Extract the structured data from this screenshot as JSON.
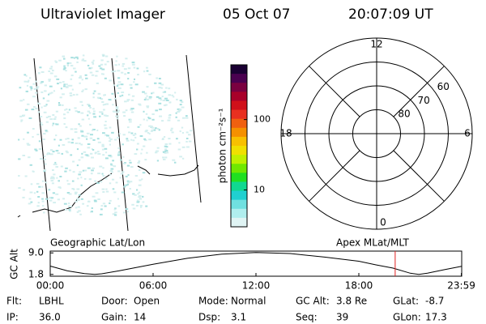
{
  "header": {
    "instrument": "Ultraviolet Imager",
    "date": "05 Oct 07",
    "time": "20:07:09 UT"
  },
  "colorbar": {
    "label": "photon cm⁻²s⁻¹",
    "scale": "log",
    "lim": [
      3,
      600
    ],
    "ticks": [
      10,
      100
    ],
    "colors": [
      "#1a0033",
      "#4a0050",
      "#7a0040",
      "#a8002a",
      "#d0101a",
      "#e83020",
      "#f06010",
      "#f59000",
      "#f8c000",
      "#f0e000",
      "#c0f000",
      "#70e800",
      "#20e020",
      "#10d890",
      "#20d0d0",
      "#70e0e0",
      "#b0eeee",
      "#e0f4f4"
    ]
  },
  "polar": {
    "lat_lim": [
      90,
      50
    ],
    "lat_rings": [
      80,
      70,
      60
    ],
    "mlt_ticks": [
      0,
      6,
      12,
      18
    ]
  },
  "panels": {
    "left_label": "Geographic Lat/Lon",
    "right_label": "Apex MLat/MLT"
  },
  "altitude_plot": {
    "ylabel": "GC Alt",
    "ylim": [
      1.2,
      9.6
    ],
    "yticks": [
      1.8,
      {
        "value": 9,
        "label": "9.0"
      }
    ],
    "xlim": [
      0,
      24
    ],
    "xticks": [
      {
        "value": 0,
        "label": "00:00"
      },
      {
        "value": 6,
        "label": "06:00"
      },
      {
        "value": 12,
        "label": "12:00"
      },
      {
        "value": 18,
        "label": "18:00"
      },
      {
        "value": 23.98,
        "label": "23:59"
      }
    ],
    "x": [
      0,
      1,
      2,
      2.6,
      3,
      4,
      6,
      8,
      10,
      12,
      14,
      16,
      18,
      19,
      20,
      21,
      21.5,
      22,
      23,
      24
    ],
    "values": [
      4.6,
      3.0,
      2.1,
      1.8,
      2.0,
      3.0,
      5.2,
      7.2,
      8.6,
      9.1,
      8.8,
      7.6,
      6.2,
      5.0,
      3.9,
      2.2,
      1.8,
      2.2,
      3.4,
      4.5
    ],
    "current_time": 20.12,
    "current_color": "#e02020"
  },
  "footer": [
    [
      {
        "label": "Flt:",
        "value": "LBHL"
      },
      {
        "label": "Door:",
        "value": "Open"
      },
      {
        "label": "Mode:",
        "value": "Normal"
      },
      {
        "label": "GC Alt:",
        "value": "3.8 Re"
      },
      {
        "label": "GLat:",
        "value": "-8.7"
      }
    ],
    [
      {
        "label": "IP:",
        "value": "36.0"
      },
      {
        "label": "Gain:",
        "value": "14"
      },
      {
        "label": "Dsp:",
        "value": "3.1"
      },
      {
        "label": "Seq:",
        "value": "39"
      },
      {
        "label": "GLon:",
        "value": "17.3"
      }
    ]
  ]
}
